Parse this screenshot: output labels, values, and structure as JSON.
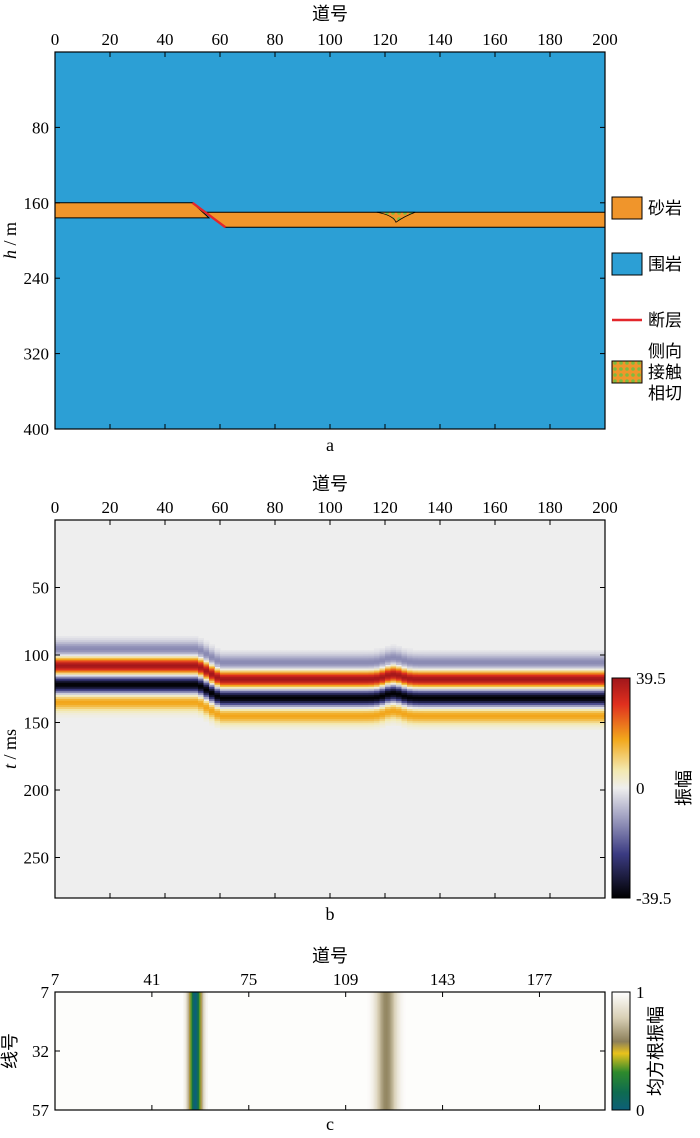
{
  "chart_data": [
    {
      "panel": "a",
      "type": "heatmap",
      "xlabel": "道号",
      "ylabel": "h / m",
      "xlim": [
        0,
        200
      ],
      "ylim": [
        400,
        0
      ],
      "xticks": [
        0,
        20,
        40,
        60,
        80,
        100,
        120,
        140,
        160,
        180,
        200
      ],
      "yticks": [
        80,
        160,
        240,
        320,
        400
      ],
      "colors": {
        "sandstone": "#f0952b",
        "country_rock": "#2c9fd5",
        "fault": "#e3262b",
        "contact": "#7dbb3f",
        "outline": "#000000"
      },
      "sand_body": {
        "left_segment": {
          "trace_from": 0,
          "trace_to": 50,
          "top": 160,
          "bottom": 176
        },
        "fault": {
          "top_trace": [
            50,
            160
          ],
          "bottom_trace": [
            62,
            186
          ]
        },
        "right_segment": {
          "trace_from": 55,
          "trace_to": 200,
          "top": 170,
          "bottom": 186
        },
        "lateral_contact_trace": 123
      },
      "legend": [
        {
          "key": "sandstone",
          "lines": [
            "砂岩"
          ]
        },
        {
          "key": "country_rock",
          "lines": [
            "围岩"
          ]
        },
        {
          "key": "fault",
          "lines": [
            "断层"
          ]
        },
        {
          "key": "contact",
          "lines": [
            "侧向",
            "接触",
            "相切"
          ]
        }
      ],
      "panel_label": "a"
    },
    {
      "panel": "b",
      "type": "heatmap",
      "xlabel": "道号",
      "ylabel": "t / ms",
      "xlim": [
        0,
        200
      ],
      "ylim": [
        280,
        0
      ],
      "xticks": [
        0,
        20,
        40,
        60,
        80,
        100,
        120,
        140,
        160,
        180,
        200
      ],
      "yticks": [
        50,
        100,
        150,
        200,
        250
      ],
      "colorbar": {
        "label": "振幅",
        "min": -39.5,
        "max": 39.5,
        "tick_labels": [
          "39.5",
          "0",
          "-39.5"
        ],
        "ticks": [
          39.5,
          0,
          -39.5
        ]
      },
      "events": {
        "left": {
          "trace_from": 0,
          "trace_to": 52,
          "shift_ms": 0
        },
        "right": {
          "trace_from": 60,
          "trace_to": 200,
          "shift_ms": 10
        },
        "contact_bump_trace": 123,
        "wavelet_ms": [
          {
            "t": 96,
            "amplitude": -14
          },
          {
            "t": 108,
            "amplitude": 39.5
          },
          {
            "t": 122,
            "amplitude": -39.5
          },
          {
            "t": 135,
            "amplitude": 18
          }
        ]
      },
      "panel_label": "b"
    },
    {
      "panel": "c",
      "type": "heatmap",
      "xlabel": "道号",
      "ylabel": "线号",
      "xlim": [
        7,
        200
      ],
      "ylim": [
        7,
        57
      ],
      "xticks": [
        7,
        41,
        75,
        109,
        143,
        177
      ],
      "yticks": [
        7,
        32,
        57
      ],
      "colorbar": {
        "label": "均方根振幅",
        "min": 0,
        "max": 1,
        "tick_labels": [
          "1",
          "0"
        ],
        "ticks": [
          1,
          0
        ]
      },
      "anomalies": [
        {
          "trace": 56,
          "rms": 0.0,
          "note": "fault"
        },
        {
          "trace": 123,
          "rms": 0.6,
          "note": "lateral contact"
        }
      ],
      "panel_label": "c"
    }
  ]
}
